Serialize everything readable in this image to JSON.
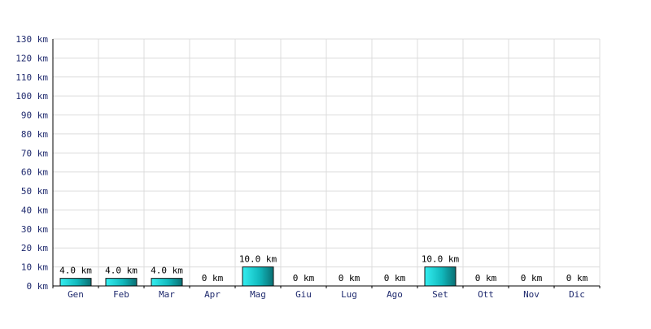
{
  "chart_data": {
    "type": "bar",
    "title": "",
    "xlabel": "",
    "ylabel": "",
    "unit": "km",
    "categories": [
      "Gen",
      "Feb",
      "Mar",
      "Apr",
      "Mag",
      "Giu",
      "Lug",
      "Ago",
      "Set",
      "Ott",
      "Nov",
      "Dic"
    ],
    "values": [
      4.0,
      4.0,
      4.0,
      0,
      10.0,
      0,
      0,
      0,
      10.0,
      0,
      0,
      0
    ],
    "data_labels": [
      "4.0 km",
      "4.0 km",
      "4.0 km",
      "0 km",
      "10.0 km",
      "0 km",
      "0 km",
      "0 km",
      "10.0 km",
      "0 km",
      "0 km",
      "0 km"
    ],
    "yticks": [
      0,
      10,
      20,
      30,
      40,
      50,
      60,
      70,
      80,
      90,
      100,
      110,
      120,
      130
    ],
    "ytick_labels": [
      "0 km",
      "10 km",
      "20 km",
      "30 km",
      "40 km",
      "50 km",
      "60 km",
      "70 km",
      "80 km",
      "90 km",
      "100 km",
      "110 km",
      "120 km",
      "130 km"
    ],
    "ylim": [
      0,
      130
    ],
    "grid": true,
    "legend": "none",
    "colors": {
      "bar_light": "#33eef0",
      "bar_mid": "#11b9bd",
      "bar_dark": "#0a6f73",
      "grid": "#dcdcdc",
      "tick_text": "#1f2a6e"
    }
  }
}
